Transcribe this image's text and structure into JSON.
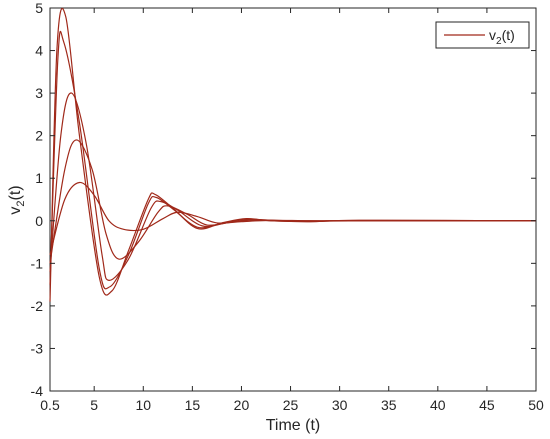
{
  "chart_data": {
    "type": "line",
    "title": "",
    "xlabel": "Time (t)",
    "ylabel_main": "v",
    "ylabel_sub": "2",
    "ylabel_tail": "(t)",
    "xlim": [
      0.5,
      50
    ],
    "ylim": [
      -4,
      5
    ],
    "xticks": [
      0.5,
      5,
      10,
      15,
      20,
      25,
      30,
      35,
      40,
      45,
      50
    ],
    "xtick_labels": [
      "0.5",
      "5",
      "10",
      "15",
      "20",
      "25",
      "30",
      "35",
      "40",
      "45",
      "50"
    ],
    "yticks": [
      -4,
      -3,
      -2,
      -1,
      0,
      1,
      2,
      3,
      4,
      5
    ],
    "ytick_labels": [
      "-4",
      "-3",
      "-2",
      "-1",
      "0",
      "1",
      "2",
      "3",
      "4",
      "5"
    ],
    "grid": false,
    "legend": {
      "position": "top-right",
      "label_main": "v",
      "label_sub": "2",
      "label_tail": "(t)"
    },
    "line_color": "#a0291a",
    "series": [
      {
        "x": [
          0.5,
          1.2,
          2.1,
          3.5,
          5.5,
          6.8,
          8.5,
          10.5,
          11.2,
          13,
          15.5,
          18,
          20.5,
          23,
          27,
          32,
          50
        ],
        "y": [
          -1.9,
          4.0,
          4.8,
          2.0,
          -1.3,
          -1.65,
          -0.7,
          0.5,
          0.62,
          0.3,
          -0.18,
          -0.05,
          0.05,
          0.0,
          -0.02,
          0.01,
          0.0
        ]
      },
      {
        "x": [
          0.5,
          1.3,
          1.9,
          3.5,
          5.5,
          6.6,
          8.5,
          10.5,
          11.3,
          13,
          15.5,
          18,
          20.5,
          23,
          27,
          32,
          50
        ],
        "y": [
          -1.5,
          3.8,
          4.2,
          2.3,
          -1.1,
          -1.55,
          -0.8,
          0.4,
          0.55,
          0.28,
          -0.15,
          -0.06,
          0.04,
          0.0,
          -0.02,
          0.01,
          0.0
        ]
      },
      {
        "x": [
          0.5,
          1.6,
          2.7,
          4.2,
          5.8,
          6.5,
          8.5,
          10.8,
          11.8,
          13.5,
          16,
          18.5,
          21,
          24,
          28,
          33,
          50
        ],
        "y": [
          -1.2,
          2.0,
          3.0,
          1.8,
          -0.8,
          -1.4,
          -0.9,
          0.3,
          0.45,
          0.25,
          -0.12,
          -0.05,
          0.03,
          0.0,
          -0.01,
          0.0,
          0.0
        ]
      },
      {
        "x": [
          0.5,
          2.0,
          3.2,
          4.8,
          6.2,
          7.5,
          9.5,
          11.5,
          12.5,
          14.5,
          16.5,
          19,
          21.5,
          25,
          30,
          50
        ],
        "y": [
          -1.0,
          1.2,
          1.9,
          1.2,
          -0.3,
          -0.9,
          -0.5,
          0.2,
          0.35,
          0.15,
          -0.1,
          -0.03,
          0.02,
          0.0,
          0.0,
          0.0
        ]
      },
      {
        "x": [
          0.5,
          2.0,
          3.5,
          5.0,
          6.5,
          8.0,
          10.0,
          12.0,
          13.5,
          15.5,
          17.5,
          20.0,
          23.0,
          27.0,
          32.0,
          50
        ],
        "y": [
          -0.8,
          0.5,
          0.9,
          0.6,
          0.0,
          -0.2,
          -0.2,
          0.05,
          0.2,
          0.1,
          -0.05,
          -0.02,
          0.01,
          0.0,
          0.0,
          0.0
        ]
      }
    ]
  }
}
